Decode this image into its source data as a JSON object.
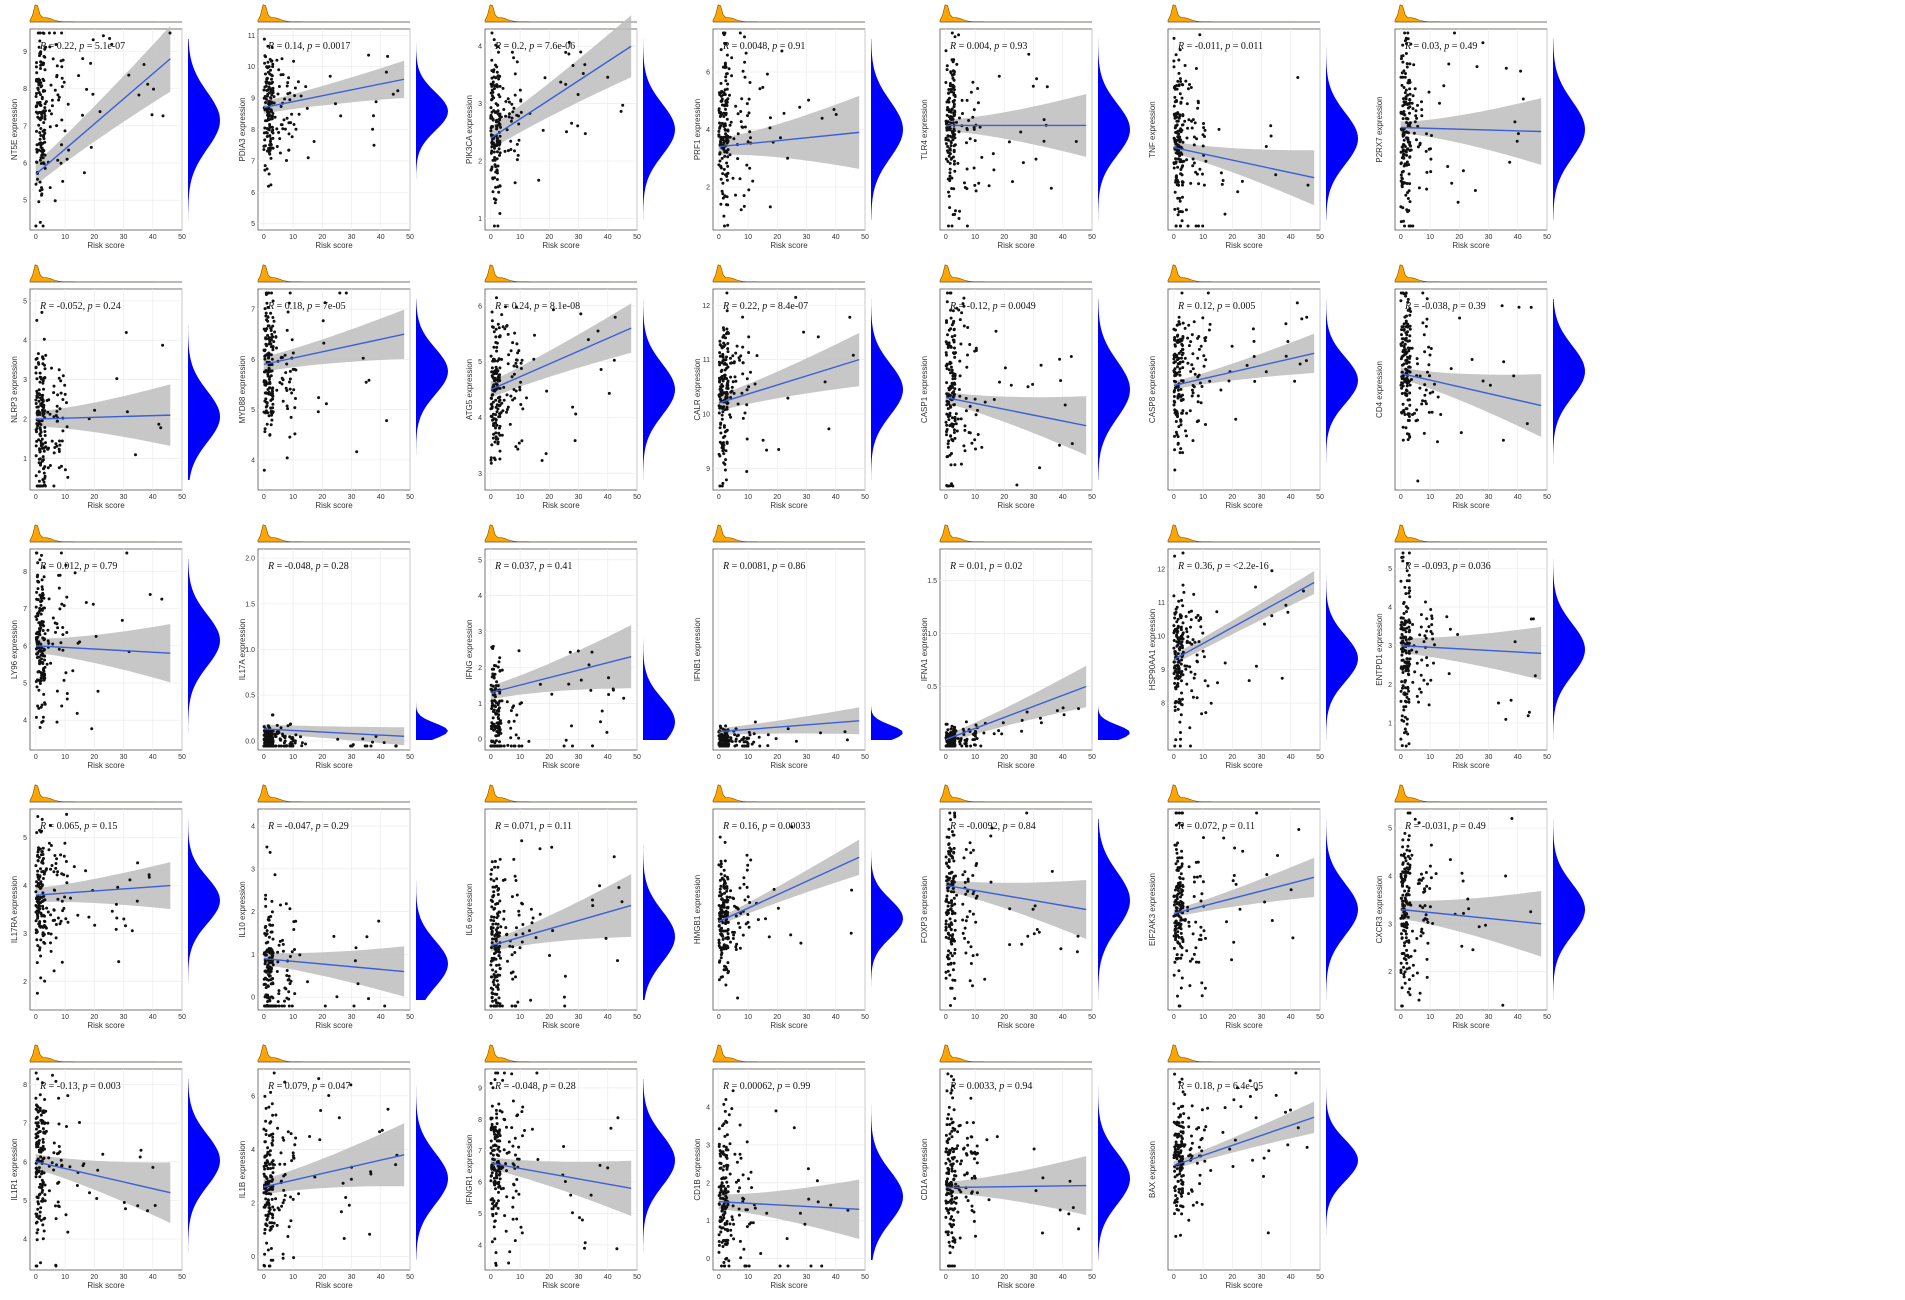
{
  "chart_data": [
    {
      "type": "scatter",
      "gene": "NT5E",
      "r": "0.22",
      "p": "5.1e-07",
      "xlabel": "Risk score",
      "ylabel": "NT5E  expression",
      "xticks": [
        "0",
        "10",
        "20",
        "30",
        "40",
        "50"
      ],
      "yticks": [
        "5",
        "6",
        "7",
        "8",
        "9"
      ],
      "ylim": [
        4.2,
        9.6
      ],
      "line": [
        5.7,
        8.8
      ],
      "band": [
        0.3,
        0.9
      ],
      "peak": 0.55,
      "spread": 0.22,
      "fit_end": 46,
      "seed": 1
    },
    {
      "type": "scatter",
      "gene": "PDIA3",
      "r": "0.14",
      "p": "0.0017",
      "xlabel": "Risk score",
      "ylabel": "PDIA3  expression",
      "xticks": [
        "0",
        "10",
        "20",
        "30",
        "40",
        "50"
      ],
      "yticks": [
        "5",
        "6",
        "7",
        "8",
        "9",
        "10",
        "11"
      ],
      "ylim": [
        4.8,
        11.2
      ],
      "line": [
        8.7,
        9.6
      ],
      "band": [
        0.2,
        0.6
      ],
      "peak": 0.6,
      "spread": 0.15,
      "fit_end": 48,
      "seed": 2
    },
    {
      "type": "scatter",
      "gene": "PIK3CA",
      "r": "0.2",
      "p": "7.6e-06",
      "xlabel": "Risk score",
      "ylabel": "PIK3CA  expression",
      "xticks": [
        "0",
        "10",
        "20",
        "30",
        "40",
        "50"
      ],
      "yticks": [
        "1",
        "2",
        "3",
        "4"
      ],
      "ylim": [
        0.8,
        4.3
      ],
      "line": [
        2.4,
        4.0
      ],
      "band": [
        0.2,
        0.55
      ],
      "peak": 0.5,
      "spread": 0.2,
      "fit_end": 48,
      "seed": 3
    },
    {
      "type": "scatter",
      "gene": "PRF1",
      "r": "0.0048",
      "p": "0.91",
      "xlabel": "Risk score",
      "ylabel": "PRF1  expression",
      "xticks": [
        "0",
        "10",
        "20",
        "30",
        "40",
        "50"
      ],
      "yticks": [
        "2",
        "4",
        "6"
      ],
      "ylim": [
        0.5,
        7.5
      ],
      "line": [
        3.4,
        3.9
      ],
      "band": [
        0.3,
        1.3
      ],
      "peak": 0.5,
      "spread": 0.22,
      "fit_end": 48,
      "seed": 4
    },
    {
      "type": "scatter",
      "gene": "TLR4",
      "r": "0.004",
      "p": "0.93",
      "xlabel": "Risk score",
      "ylabel": "TLR4  expression",
      "xticks": [
        "0",
        "10",
        "20",
        "30",
        "40",
        "50"
      ],
      "yticks": [],
      "ylim": [
        0,
        10
      ],
      "line": [
        5.2,
        5.2
      ],
      "band": [
        0.3,
        1.6
      ],
      "peak": 0.5,
      "spread": 0.2,
      "fit_end": 48,
      "seed": 5
    },
    {
      "type": "scatter",
      "gene": "TNF",
      "r": "-0.011",
      "p": "0.011",
      "xlabel": "Risk score",
      "ylabel": "TNF  expression",
      "xticks": [
        "0",
        "10",
        "20",
        "30",
        "40",
        "50"
      ],
      "yticks": [],
      "ylim": [
        0,
        10
      ],
      "line": [
        4.1,
        2.6
      ],
      "band": [
        0.3,
        1.4
      ],
      "peak": 0.45,
      "spread": 0.2,
      "fit_end": 48,
      "seed": 6
    },
    {
      "type": "scatter",
      "gene": "P2RX7",
      "r": "0.03",
      "p": "0.49",
      "xlabel": "Risk score",
      "ylabel": "P2RX7  expression",
      "xticks": [
        "0",
        "10",
        "20",
        "30",
        "40",
        "50"
      ],
      "yticks": [],
      "ylim": [
        0,
        10
      ],
      "line": [
        5.1,
        4.9
      ],
      "band": [
        0.3,
        1.7
      ],
      "peak": 0.5,
      "spread": 0.22,
      "fit_end": 48,
      "seed": 7
    },
    {
      "type": "scatter",
      "gene": "NLRP3",
      "r": "-0.052",
      "p": "0.24",
      "xlabel": "Risk score",
      "ylabel": "NLRP3  expression",
      "xticks": [
        "0",
        "10",
        "20",
        "30",
        "40",
        "50"
      ],
      "yticks": [
        "1",
        "2",
        "3",
        "4",
        "5"
      ],
      "ylim": [
        0.2,
        5.3
      ],
      "line": [
        2.0,
        2.1
      ],
      "band": [
        0.2,
        0.8
      ],
      "peak": 0.35,
      "spread": 0.2,
      "fit_end": 46,
      "seed": 8
    },
    {
      "type": "scatter",
      "gene": "MYD88",
      "r": "0.18",
      "p": "7e-05",
      "xlabel": "Risk score",
      "ylabel": "MYD88  expression",
      "xticks": [
        "0",
        "10",
        "20",
        "30",
        "40",
        "50"
      ],
      "yticks": [
        "4",
        "5",
        "6",
        "7"
      ],
      "ylim": [
        3.4,
        7.4
      ],
      "line": [
        5.9,
        6.5
      ],
      "band": [
        0.15,
        0.5
      ],
      "peak": 0.6,
      "spread": 0.18,
      "fit_end": 48,
      "seed": 9
    },
    {
      "type": "scatter",
      "gene": "ATG5",
      "r": "0.24",
      "p": "8.1e-08",
      "xlabel": "Risk score",
      "ylabel": "ATG5  expression",
      "xticks": [
        "0",
        "10",
        "20",
        "30",
        "40",
        "50"
      ],
      "yticks": [
        "3",
        "4",
        "5",
        "6"
      ],
      "ylim": [
        2.7,
        6.3
      ],
      "line": [
        4.5,
        5.6
      ],
      "band": [
        0.15,
        0.45
      ],
      "peak": 0.5,
      "spread": 0.2,
      "fit_end": 48,
      "seed": 10
    },
    {
      "type": "scatter",
      "gene": "CALR",
      "r": "0.22",
      "p": "8.4e-07",
      "xlabel": "Risk score",
      "ylabel": "CALR  expression",
      "xticks": [
        "0",
        "10",
        "20",
        "30",
        "40",
        "50"
      ],
      "yticks": [
        "9",
        "10",
        "11",
        "12"
      ],
      "ylim": [
        8.6,
        12.3
      ],
      "line": [
        10.2,
        11.0
      ],
      "band": [
        0.15,
        0.5
      ],
      "peak": 0.5,
      "spread": 0.2,
      "fit_end": 48,
      "seed": 11
    },
    {
      "type": "scatter",
      "gene": "CASP1",
      "r": "-0.12",
      "p": "0.0049",
      "xlabel": "Risk score",
      "ylabel": "CASP1  expression",
      "xticks": [
        "0",
        "10",
        "20",
        "30",
        "40",
        "50"
      ],
      "yticks": [],
      "ylim": [
        0,
        10
      ],
      "line": [
        4.6,
        3.2
      ],
      "band": [
        0.3,
        1.5
      ],
      "peak": 0.5,
      "spread": 0.22,
      "fit_end": 48,
      "seed": 12
    },
    {
      "type": "scatter",
      "gene": "CASP8",
      "r": "0.12",
      "p": "0.005",
      "xlabel": "Risk score",
      "ylabel": "CASP8  expression",
      "xticks": [
        "0",
        "10",
        "20",
        "30",
        "40",
        "50"
      ],
      "yticks": [],
      "ylim": [
        0,
        10
      ],
      "line": [
        5.2,
        6.8
      ],
      "band": [
        0.2,
        1.0
      ],
      "peak": 0.55,
      "spread": 0.18,
      "fit_end": 48,
      "seed": 13
    },
    {
      "type": "scatter",
      "gene": "CD4",
      "r": "-0.038",
      "p": "0.39",
      "xlabel": "Risk score",
      "ylabel": "CD4  expression",
      "xticks": [
        "0",
        "10",
        "20",
        "30",
        "40",
        "50"
      ],
      "yticks": [],
      "ylim": [
        0,
        10
      ],
      "line": [
        5.8,
        4.2
      ],
      "band": [
        0.3,
        1.6
      ],
      "peak": 0.6,
      "spread": 0.2,
      "fit_end": 48,
      "seed": 14
    },
    {
      "type": "scatter",
      "gene": "LY96",
      "r": "0.012",
      "p": "0.79",
      "xlabel": "Risk score",
      "ylabel": "LY96  expression",
      "xticks": [
        "0",
        "10",
        "20",
        "30",
        "40",
        "50"
      ],
      "yticks": [
        "4",
        "5",
        "6",
        "7",
        "8"
      ],
      "ylim": [
        3.2,
        8.6
      ],
      "line": [
        6.0,
        5.8
      ],
      "band": [
        0.2,
        0.8
      ],
      "peak": 0.55,
      "spread": 0.2,
      "fit_end": 46,
      "seed": 15
    },
    {
      "type": "scatter",
      "gene": "IL17A",
      "r": "-0.048",
      "p": "0.28",
      "xlabel": "Risk score",
      "ylabel": "IL17A  expression",
      "xticks": [
        "0",
        "10",
        "20",
        "30",
        "40",
        "50"
      ],
      "yticks": [
        "0.0",
        "0.5",
        "1.0",
        "1.5",
        "2.0"
      ],
      "ylim": [
        -0.1,
        2.1
      ],
      "line": [
        0.13,
        0.05
      ],
      "band": [
        0.05,
        0.1
      ],
      "peak": 0.05,
      "spread": 0.04,
      "fit_end": 48,
      "seed": 16
    },
    {
      "type": "scatter",
      "gene": "IFNG",
      "r": "0.037",
      "p": "0.41",
      "xlabel": "Risk score",
      "ylabel": "IFNG  expression",
      "xticks": [
        "0",
        "10",
        "20",
        "30",
        "40",
        "50"
      ],
      "yticks": [
        "0",
        "1",
        "2",
        "3",
        "4",
        "5"
      ],
      "ylim": [
        -0.3,
        5.3
      ],
      "line": [
        1.3,
        2.3
      ],
      "band": [
        0.2,
        0.9
      ],
      "peak": 0.1,
      "spread": 0.18,
      "fit_end": 48,
      "seed": 17
    },
    {
      "type": "scatter",
      "gene": "IFNB1",
      "r": "0.0081",
      "p": "0.86",
      "xlabel": "Risk score",
      "ylabel": "IFNB1  expression",
      "xticks": [
        "0",
        "10",
        "20",
        "30",
        "40",
        "50"
      ],
      "yticks": [],
      "ylim": [
        -0.1,
        2.1
      ],
      "line": [
        0.1,
        0.22
      ],
      "band": [
        0.04,
        0.15
      ],
      "peak": 0.04,
      "spread": 0.03,
      "fit_end": 48,
      "seed": 18
    },
    {
      "type": "scatter",
      "gene": "IFNA1",
      "r": "0.01",
      "p": "0.02",
      "xlabel": "Risk score",
      "ylabel": "IFNA1  expression",
      "xticks": [
        "0",
        "10",
        "20",
        "30",
        "40",
        "50"
      ],
      "yticks": [
        "0.5",
        "1.0",
        "1.5"
      ],
      "ylim": [
        -0.1,
        1.8
      ],
      "line": [
        0.0,
        0.5
      ],
      "band": [
        0.04,
        0.2
      ],
      "peak": 0.04,
      "spread": 0.03,
      "fit_end": 48,
      "seed": 19
    },
    {
      "type": "scatter",
      "gene": "HSP90AA1",
      "r": "0.36",
      "p": "<2.2e-16",
      "xlabel": "Risk score",
      "ylabel": "HSP90AA1  expression",
      "xticks": [
        "0",
        "10",
        "20",
        "30",
        "40",
        "50"
      ],
      "yticks": [
        "8",
        "9",
        "10",
        "11",
        "12"
      ],
      "ylim": [
        6.6,
        12.6
      ],
      "line": [
        9.3,
        11.6
      ],
      "band": [
        0.15,
        0.35
      ],
      "peak": 0.45,
      "spread": 0.18,
      "fit_end": 48,
      "seed": 20
    },
    {
      "type": "scatter",
      "gene": "ENTPD1",
      "r": "-0.093",
      "p": "0.036",
      "xlabel": "Risk score",
      "ylabel": "ENTPD1  expression",
      "xticks": [
        "0",
        "10",
        "20",
        "30",
        "40",
        "50"
      ],
      "yticks": [
        "1",
        "2",
        "3",
        "4",
        "5"
      ],
      "ylim": [
        0.3,
        5.5
      ],
      "line": [
        3.0,
        2.8
      ],
      "band": [
        0.2,
        0.7
      ],
      "peak": 0.5,
      "spread": 0.2,
      "fit_end": 48,
      "seed": 21
    },
    {
      "type": "scatter",
      "gene": "IL17RA",
      "r": "0.065",
      "p": "0.15",
      "xlabel": "Risk score",
      "ylabel": "IL17RA  expression",
      "xticks": [
        "0",
        "10",
        "20",
        "30",
        "40",
        "50"
      ],
      "yticks": [
        "2",
        "3",
        "4",
        "5"
      ],
      "ylim": [
        1.4,
        5.6
      ],
      "line": [
        3.8,
        4.0
      ],
      "band": [
        0.15,
        0.5
      ],
      "peak": 0.55,
      "spread": 0.18,
      "fit_end": 46,
      "seed": 22
    },
    {
      "type": "scatter",
      "gene": "IL10",
      "r": "-0.047",
      "p": "0.29",
      "xlabel": "Risk score",
      "ylabel": "IL10  expression",
      "xticks": [
        "0",
        "10",
        "20",
        "30",
        "40",
        "50"
      ],
      "yticks": [
        "0",
        "1",
        "2",
        "3",
        "4"
      ],
      "ylim": [
        -0.3,
        4.4
      ],
      "line": [
        0.9,
        0.6
      ],
      "band": [
        0.15,
        0.6
      ],
      "peak": 0.2,
      "spread": 0.18,
      "fit_end": 48,
      "seed": 23
    },
    {
      "type": "scatter",
      "gene": "IL6",
      "r": "0.071",
      "p": "0.11",
      "xlabel": "Risk score",
      "ylabel": "IL6  expression",
      "xticks": [
        "0",
        "10",
        "20",
        "30",
        "40",
        "50"
      ],
      "yticks": [],
      "ylim": [
        0,
        10
      ],
      "line": [
        3.2,
        5.2
      ],
      "band": [
        0.3,
        1.6
      ],
      "peak": 0.35,
      "spread": 0.2,
      "fit_end": 48,
      "seed": 24
    },
    {
      "type": "scatter",
      "gene": "HMGB1",
      "r": "0.16",
      "p": "0.00033",
      "xlabel": "Risk score",
      "ylabel": "HMGB1  expression",
      "xticks": [
        "0",
        "10",
        "20",
        "30",
        "40",
        "50"
      ],
      "yticks": [],
      "ylim": [
        0,
        10
      ],
      "line": [
        4.4,
        7.6
      ],
      "band": [
        0.2,
        0.9
      ],
      "peak": 0.45,
      "spread": 0.15,
      "fit_end": 48,
      "seed": 25
    },
    {
      "type": "scatter",
      "gene": "FOXP3",
      "r": "-0.0092",
      "p": "0.84",
      "xlabel": "Risk score",
      "ylabel": "FOXP3  expression",
      "xticks": [
        "0",
        "10",
        "20",
        "30",
        "40",
        "50"
      ],
      "yticks": [],
      "ylim": [
        0,
        10
      ],
      "line": [
        6.2,
        5.0
      ],
      "band": [
        0.3,
        1.5
      ],
      "peak": 0.55,
      "spread": 0.22,
      "fit_end": 48,
      "seed": 26
    },
    {
      "type": "scatter",
      "gene": "EIF2AK3",
      "r": "0.072",
      "p": "0.11",
      "xlabel": "Risk score",
      "ylabel": "EIF2AK3  expression",
      "xticks": [
        "0",
        "10",
        "20",
        "30",
        "40",
        "50"
      ],
      "yticks": [],
      "ylim": [
        0,
        10
      ],
      "line": [
        4.8,
        6.6
      ],
      "band": [
        0.2,
        1.0
      ],
      "peak": 0.5,
      "spread": 0.2,
      "fit_end": 48,
      "seed": 27
    },
    {
      "type": "scatter",
      "gene": "CXCR3",
      "r": "-0.031",
      "p": "0.49",
      "xlabel": "Risk score",
      "ylabel": "CXCR3  expression",
      "xticks": [
        "0",
        "10",
        "20",
        "30",
        "40",
        "50"
      ],
      "yticks": [
        "2",
        "3",
        "4",
        "5"
      ],
      "ylim": [
        1.2,
        5.4
      ],
      "line": [
        3.3,
        3.0
      ],
      "band": [
        0.2,
        0.7
      ],
      "peak": 0.5,
      "spread": 0.2,
      "fit_end": 48,
      "seed": 28
    },
    {
      "type": "scatter",
      "gene": "IL1R1",
      "r": "-0.13",
      "p": "0.003",
      "xlabel": "Risk score",
      "ylabel": "IL1R1  expression",
      "xticks": [
        "0",
        "10",
        "20",
        "30",
        "40",
        "50"
      ],
      "yticks": [
        "4",
        "5",
        "6",
        "7",
        "8"
      ],
      "ylim": [
        3.2,
        8.4
      ],
      "line": [
        6.0,
        5.2
      ],
      "band": [
        0.2,
        0.8
      ],
      "peak": 0.55,
      "spread": 0.2,
      "fit_end": 46,
      "seed": 29
    },
    {
      "type": "scatter",
      "gene": "IL1B",
      "r": "0.079",
      "p": "0.047",
      "xlabel": "Risk score",
      "ylabel": "IL1B  expression",
      "xticks": [
        "0",
        "10",
        "20",
        "30",
        "40",
        "50"
      ],
      "yticks": [
        "0",
        "2",
        "4",
        "6"
      ],
      "ylim": [
        -0.5,
        7.0
      ],
      "line": [
        2.6,
        3.8
      ],
      "band": [
        0.3,
        1.2
      ],
      "peak": 0.45,
      "spread": 0.2,
      "fit_end": 48,
      "seed": 30
    },
    {
      "type": "scatter",
      "gene": "IFNGR1",
      "r": "-0.048",
      "p": "0.28",
      "xlabel": "Risk score",
      "ylabel": "IFNGR1  expression",
      "xticks": [
        "0",
        "10",
        "20",
        "30",
        "40",
        "50"
      ],
      "yticks": [
        "4",
        "5",
        "6",
        "7",
        "8",
        "9"
      ],
      "ylim": [
        3.2,
        9.6
      ],
      "line": [
        6.6,
        5.8
      ],
      "band": [
        0.2,
        0.9
      ],
      "peak": 0.55,
      "spread": 0.2,
      "fit_end": 48,
      "seed": 31
    },
    {
      "type": "scatter",
      "gene": "CD1B",
      "r": "0.00062",
      "p": "0.99",
      "xlabel": "Risk score",
      "ylabel": "CD1B  expression",
      "xticks": [
        "0",
        "10",
        "20",
        "30",
        "40",
        "50"
      ],
      "yticks": [
        "0",
        "1",
        "2",
        "3",
        "4"
      ],
      "ylim": [
        -0.3,
        5.0
      ],
      "line": [
        1.5,
        1.3
      ],
      "band": [
        0.2,
        0.8
      ],
      "peak": 0.35,
      "spread": 0.2,
      "fit_end": 48,
      "seed": 32
    },
    {
      "type": "scatter",
      "gene": "CD1A",
      "r": "0.0033",
      "p": "0.94",
      "xlabel": "Risk score",
      "ylabel": "CD1A  expression",
      "xticks": [
        "0",
        "10",
        "20",
        "30",
        "40",
        "50"
      ],
      "yticks": [],
      "ylim": [
        0,
        10
      ],
      "line": [
        4.1,
        4.2
      ],
      "band": [
        0.3,
        1.5
      ],
      "peak": 0.45,
      "spread": 0.2,
      "fit_end": 48,
      "seed": 33
    },
    {
      "type": "scatter",
      "gene": "BAX",
      "r": "0.18",
      "p": "6.4e-05",
      "xlabel": "Risk score",
      "ylabel": "BAX  expression",
      "xticks": [
        "0",
        "10",
        "20",
        "30",
        "40",
        "50"
      ],
      "yticks": [],
      "ylim": [
        0,
        10
      ],
      "line": [
        5.2,
        7.6
      ],
      "band": [
        0.2,
        0.8
      ],
      "peak": 0.55,
      "spread": 0.16,
      "fit_end": 48,
      "seed": 34
    }
  ],
  "colors": {
    "points": "#111111",
    "fit_line": "#3b5fd6",
    "ci_band": "#bdbdbd",
    "top_density": "#ffa500",
    "top_density_stroke": "#7a4d00",
    "side_density": "#0000ff",
    "grid": "#ececec",
    "frame": "#555555"
  },
  "layout": {
    "columns": 7,
    "rows": 5,
    "marginal_plots": "top and right"
  }
}
